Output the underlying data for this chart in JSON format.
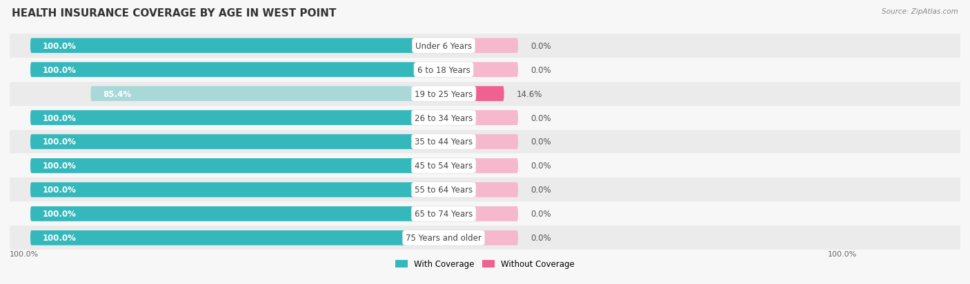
{
  "title": "HEALTH INSURANCE COVERAGE BY AGE IN WEST POINT",
  "source": "Source: ZipAtlas.com",
  "categories": [
    "Under 6 Years",
    "6 to 18 Years",
    "19 to 25 Years",
    "26 to 34 Years",
    "35 to 44 Years",
    "45 to 54 Years",
    "55 to 64 Years",
    "65 to 74 Years",
    "75 Years and older"
  ],
  "with_coverage": [
    100.0,
    100.0,
    85.4,
    100.0,
    100.0,
    100.0,
    100.0,
    100.0,
    100.0
  ],
  "without_coverage": [
    0.0,
    0.0,
    14.6,
    0.0,
    0.0,
    0.0,
    0.0,
    0.0,
    0.0
  ],
  "color_with_full": "#35b8bc",
  "color_with_light": "#a8d8d8",
  "color_without_full": "#f06090",
  "color_without_light": "#f5b8cc",
  "background_color": "#f7f7f7",
  "row_bg_odd": "#ebebeb",
  "row_bg_even": "#f7f7f7",
  "title_fontsize": 11,
  "label_fontsize": 8.5,
  "tick_fontsize": 8,
  "legend_fontsize": 8.5
}
